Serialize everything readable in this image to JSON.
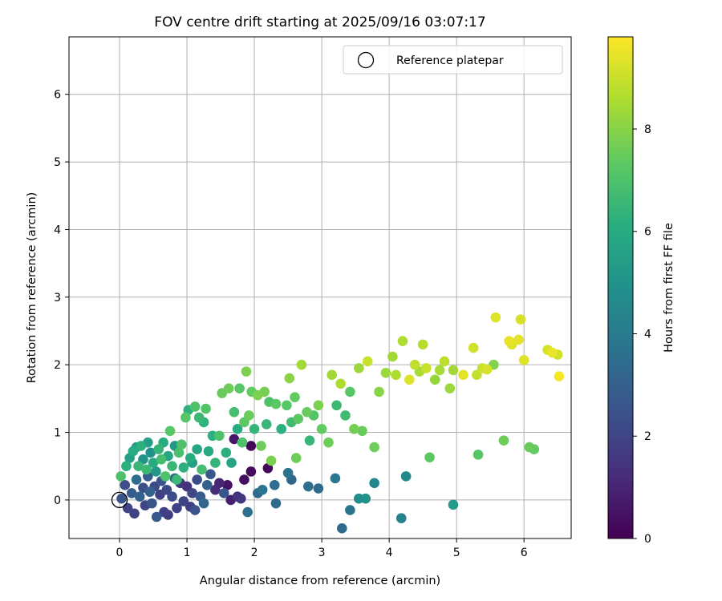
{
  "chart_data": {
    "type": "scatter",
    "title": "FOV centre drift starting at 2025/09/16 03:07:17",
    "xlabel": "Angular distance from reference (arcmin)",
    "ylabel": "Rotation from reference (arcmin)",
    "xlim": [
      -0.75,
      6.7
    ],
    "ylim": [
      -0.57,
      6.85
    ],
    "xticks": [
      0,
      1,
      2,
      3,
      4,
      5,
      6
    ],
    "yticks": [
      0,
      1,
      2,
      3,
      4,
      5,
      6
    ],
    "grid": true,
    "legend": {
      "position": "top-right",
      "entries": [
        "Reference platepar"
      ]
    },
    "reference_point": {
      "x": 0,
      "y": 0
    },
    "colorbar": {
      "label": "Hours from first FF file",
      "range": [
        0,
        9.8
      ],
      "ticks": [
        0,
        2,
        4,
        6,
        8
      ],
      "colormap": "viridis"
    },
    "points": [
      {
        "x": 0.03,
        "y": 0.02,
        "c": 2.6
      },
      {
        "x": 0.08,
        "y": 0.22,
        "c": 2.3
      },
      {
        "x": 0.12,
        "y": -0.12,
        "c": 2.0
      },
      {
        "x": 0.18,
        "y": 0.1,
        "c": 2.8
      },
      {
        "x": 0.22,
        "y": -0.2,
        "c": 1.9
      },
      {
        "x": 0.25,
        "y": 0.3,
        "c": 3.5
      },
      {
        "x": 0.3,
        "y": 0.05,
        "c": 3.0
      },
      {
        "x": 0.35,
        "y": 0.18,
        "c": 2.4
      },
      {
        "x": 0.38,
        "y": -0.08,
        "c": 2.0
      },
      {
        "x": 0.42,
        "y": 0.35,
        "c": 2.9
      },
      {
        "x": 0.45,
        "y": 0.12,
        "c": 3.1
      },
      {
        "x": 0.48,
        "y": -0.05,
        "c": 2.6
      },
      {
        "x": 0.52,
        "y": 0.2,
        "c": 2.2
      },
      {
        "x": 0.55,
        "y": -0.25,
        "c": 2.7
      },
      {
        "x": 0.6,
        "y": 0.08,
        "c": 1.8
      },
      {
        "x": 0.62,
        "y": 0.28,
        "c": 2.5
      },
      {
        "x": 0.66,
        "y": -0.18,
        "c": 1.9
      },
      {
        "x": 0.7,
        "y": 0.15,
        "c": 2.1
      },
      {
        "x": 0.72,
        "y": -0.22,
        "c": 1.7
      },
      {
        "x": 0.78,
        "y": 0.05,
        "c": 2.3
      },
      {
        "x": 0.82,
        "y": 0.32,
        "c": 3.4
      },
      {
        "x": 0.85,
        "y": -0.12,
        "c": 1.9
      },
      {
        "x": 0.9,
        "y": 0.25,
        "c": 1.6
      },
      {
        "x": 0.95,
        "y": -0.02,
        "c": 2.0
      },
      {
        "x": 1.0,
        "y": 0.2,
        "c": 1.4
      },
      {
        "x": 1.05,
        "y": -0.1,
        "c": 1.8
      },
      {
        "x": 1.08,
        "y": 0.1,
        "c": 2.0
      },
      {
        "x": 1.12,
        "y": -0.15,
        "c": 2.5
      },
      {
        "x": 1.15,
        "y": 0.3,
        "c": 2.2
      },
      {
        "x": 1.2,
        "y": 0.05,
        "c": 2.8
      },
      {
        "x": 1.25,
        "y": -0.05,
        "c": 3.2
      },
      {
        "x": 1.3,
        "y": 0.22,
        "c": 3.0
      },
      {
        "x": 1.35,
        "y": 0.38,
        "c": 2.6
      },
      {
        "x": 1.42,
        "y": 0.15,
        "c": 1.2
      },
      {
        "x": 1.48,
        "y": 0.25,
        "c": 1.0
      },
      {
        "x": 1.55,
        "y": 0.1,
        "c": 2.6
      },
      {
        "x": 1.6,
        "y": 0.22,
        "c": 0.5
      },
      {
        "x": 1.65,
        "y": 0.0,
        "c": 0.9
      },
      {
        "x": 1.7,
        "y": 0.9,
        "c": 0.6
      },
      {
        "x": 1.75,
        "y": 0.05,
        "c": 1.4
      },
      {
        "x": 1.8,
        "y": 0.02,
        "c": 1.6
      },
      {
        "x": 1.85,
        "y": 0.3,
        "c": 0.4
      },
      {
        "x": 1.9,
        "y": -0.18,
        "c": 3.6
      },
      {
        "x": 1.95,
        "y": 0.42,
        "c": 0.3
      },
      {
        "x": 1.95,
        "y": 0.8,
        "c": 0.2
      },
      {
        "x": 2.05,
        "y": 0.1,
        "c": 3.3
      },
      {
        "x": 2.12,
        "y": 0.15,
        "c": 3.8
      },
      {
        "x": 2.2,
        "y": 0.47,
        "c": 0.2
      },
      {
        "x": 2.3,
        "y": 0.22,
        "c": 3.5
      },
      {
        "x": 2.32,
        "y": -0.05,
        "c": 3.4
      },
      {
        "x": 2.5,
        "y": 0.4,
        "c": 3.7
      },
      {
        "x": 2.55,
        "y": 0.3,
        "c": 3.2
      },
      {
        "x": 2.8,
        "y": 0.2,
        "c": 3.6
      },
      {
        "x": 2.95,
        "y": 0.17,
        "c": 3.4
      },
      {
        "x": 3.2,
        "y": 0.32,
        "c": 3.9
      },
      {
        "x": 3.3,
        "y": -0.42,
        "c": 3.4
      },
      {
        "x": 3.42,
        "y": -0.15,
        "c": 3.7
      },
      {
        "x": 3.55,
        "y": 0.02,
        "c": 4.7
      },
      {
        "x": 3.65,
        "y": 0.02,
        "c": 5.0
      },
      {
        "x": 3.78,
        "y": 0.25,
        "c": 4.5
      },
      {
        "x": 4.18,
        "y": -0.27,
        "c": 4.3
      },
      {
        "x": 4.25,
        "y": 0.35,
        "c": 4.6
      },
      {
        "x": 4.95,
        "y": -0.07,
        "c": 5.3
      },
      {
        "x": 0.02,
        "y": 0.35,
        "c": 7.0
      },
      {
        "x": 0.1,
        "y": 0.5,
        "c": 6.2
      },
      {
        "x": 0.15,
        "y": 0.62,
        "c": 5.6
      },
      {
        "x": 0.2,
        "y": 0.72,
        "c": 6.0
      },
      {
        "x": 0.25,
        "y": 0.78,
        "c": 5.4
      },
      {
        "x": 0.28,
        "y": 0.5,
        "c": 6.5
      },
      {
        "x": 0.32,
        "y": 0.8,
        "c": 6.2
      },
      {
        "x": 0.35,
        "y": 0.6,
        "c": 5.0
      },
      {
        "x": 0.4,
        "y": 0.45,
        "c": 6.6
      },
      {
        "x": 0.42,
        "y": 0.85,
        "c": 5.5
      },
      {
        "x": 0.46,
        "y": 0.7,
        "c": 4.9
      },
      {
        "x": 0.5,
        "y": 0.55,
        "c": 6.0
      },
      {
        "x": 0.54,
        "y": 0.42,
        "c": 5.2
      },
      {
        "x": 0.58,
        "y": 0.75,
        "c": 6.4
      },
      {
        "x": 0.62,
        "y": 0.6,
        "c": 6.8
      },
      {
        "x": 0.65,
        "y": 0.85,
        "c": 6.1
      },
      {
        "x": 0.68,
        "y": 0.35,
        "c": 7.0
      },
      {
        "x": 0.72,
        "y": 0.65,
        "c": 5.8
      },
      {
        "x": 0.75,
        "y": 1.02,
        "c": 7.2
      },
      {
        "x": 0.78,
        "y": 0.5,
        "c": 6.5
      },
      {
        "x": 0.82,
        "y": 0.8,
        "c": 5.2
      },
      {
        "x": 0.85,
        "y": 0.3,
        "c": 6.6
      },
      {
        "x": 0.88,
        "y": 0.7,
        "c": 6.9
      },
      {
        "x": 0.92,
        "y": 0.82,
        "c": 7.0
      },
      {
        "x": 0.95,
        "y": 0.48,
        "c": 6.2
      },
      {
        "x": 0.98,
        "y": 1.22,
        "c": 7.2
      },
      {
        "x": 1.02,
        "y": 1.33,
        "c": 6.3
      },
      {
        "x": 1.05,
        "y": 0.62,
        "c": 6.0
      },
      {
        "x": 1.08,
        "y": 0.55,
        "c": 5.5
      },
      {
        "x": 1.12,
        "y": 1.38,
        "c": 7.0
      },
      {
        "x": 1.15,
        "y": 0.75,
        "c": 5.7
      },
      {
        "x": 1.18,
        "y": 1.22,
        "c": 6.6
      },
      {
        "x": 1.22,
        "y": 0.45,
        "c": 6.8
      },
      {
        "x": 1.25,
        "y": 1.15,
        "c": 6.3
      },
      {
        "x": 1.28,
        "y": 1.35,
        "c": 7.1
      },
      {
        "x": 1.32,
        "y": 0.72,
        "c": 5.9
      },
      {
        "x": 1.38,
        "y": 0.95,
        "c": 6.2
      },
      {
        "x": 1.42,
        "y": 0.55,
        "c": 6.4
      },
      {
        "x": 1.48,
        "y": 0.95,
        "c": 7.0
      },
      {
        "x": 1.52,
        "y": 1.58,
        "c": 7.5
      },
      {
        "x": 1.58,
        "y": 0.7,
        "c": 6.2
      },
      {
        "x": 1.62,
        "y": 1.65,
        "c": 7.6
      },
      {
        "x": 1.66,
        "y": 0.55,
        "c": 5.7
      },
      {
        "x": 1.7,
        "y": 1.3,
        "c": 6.8
      },
      {
        "x": 1.75,
        "y": 1.05,
        "c": 6.0
      },
      {
        "x": 1.78,
        "y": 1.65,
        "c": 7.2
      },
      {
        "x": 1.82,
        "y": 0.85,
        "c": 7.0
      },
      {
        "x": 1.85,
        "y": 1.15,
        "c": 7.3
      },
      {
        "x": 1.88,
        "y": 1.9,
        "c": 7.8
      },
      {
        "x": 1.92,
        "y": 1.25,
        "c": 7.5
      },
      {
        "x": 1.96,
        "y": 1.6,
        "c": 7.4
      },
      {
        "x": 2.0,
        "y": 1.05,
        "c": 6.4
      },
      {
        "x": 2.05,
        "y": 1.55,
        "c": 7.8
      },
      {
        "x": 2.1,
        "y": 0.8,
        "c": 7.6
      },
      {
        "x": 2.15,
        "y": 1.6,
        "c": 7.7
      },
      {
        "x": 2.18,
        "y": 1.12,
        "c": 6.5
      },
      {
        "x": 2.22,
        "y": 1.45,
        "c": 7.0
      },
      {
        "x": 2.25,
        "y": 0.58,
        "c": 7.8
      },
      {
        "x": 2.32,
        "y": 1.42,
        "c": 7.3
      },
      {
        "x": 2.4,
        "y": 1.05,
        "c": 6.2
      },
      {
        "x": 2.48,
        "y": 1.4,
        "c": 7.2
      },
      {
        "x": 2.52,
        "y": 1.8,
        "c": 8.0
      },
      {
        "x": 2.55,
        "y": 1.15,
        "c": 6.7
      },
      {
        "x": 2.6,
        "y": 1.52,
        "c": 7.4
      },
      {
        "x": 2.62,
        "y": 0.62,
        "c": 7.6
      },
      {
        "x": 2.65,
        "y": 1.2,
        "c": 7.3
      },
      {
        "x": 2.7,
        "y": 2.0,
        "c": 8.4
      },
      {
        "x": 2.78,
        "y": 1.3,
        "c": 7.5
      },
      {
        "x": 2.82,
        "y": 0.88,
        "c": 6.5
      },
      {
        "x": 2.88,
        "y": 1.25,
        "c": 7.1
      },
      {
        "x": 2.95,
        "y": 1.4,
        "c": 7.8
      },
      {
        "x": 3.0,
        "y": 1.05,
        "c": 7.4
      },
      {
        "x": 3.1,
        "y": 0.85,
        "c": 7.6
      },
      {
        "x": 3.15,
        "y": 1.85,
        "c": 8.4
      },
      {
        "x": 3.22,
        "y": 1.4,
        "c": 6.6
      },
      {
        "x": 3.28,
        "y": 1.72,
        "c": 8.6
      },
      {
        "x": 3.35,
        "y": 1.25,
        "c": 6.7
      },
      {
        "x": 3.42,
        "y": 1.6,
        "c": 7.2
      },
      {
        "x": 3.48,
        "y": 1.05,
        "c": 7.7
      },
      {
        "x": 3.55,
        "y": 1.95,
        "c": 8.3
      },
      {
        "x": 3.6,
        "y": 1.02,
        "c": 7.5
      },
      {
        "x": 3.68,
        "y": 2.05,
        "c": 9.0
      },
      {
        "x": 3.78,
        "y": 0.78,
        "c": 7.6
      },
      {
        "x": 3.85,
        "y": 1.6,
        "c": 8.0
      },
      {
        "x": 3.95,
        "y": 1.88,
        "c": 8.3
      },
      {
        "x": 4.05,
        "y": 2.12,
        "c": 8.4
      },
      {
        "x": 4.1,
        "y": 1.85,
        "c": 8.6
      },
      {
        "x": 4.2,
        "y": 2.35,
        "c": 8.6
      },
      {
        "x": 4.3,
        "y": 1.78,
        "c": 9.3
      },
      {
        "x": 4.38,
        "y": 2.0,
        "c": 8.9
      },
      {
        "x": 4.45,
        "y": 1.9,
        "c": 8.5
      },
      {
        "x": 4.5,
        "y": 2.3,
        "c": 8.7
      },
      {
        "x": 4.55,
        "y": 1.95,
        "c": 9.0
      },
      {
        "x": 4.6,
        "y": 0.63,
        "c": 7.3
      },
      {
        "x": 4.68,
        "y": 1.78,
        "c": 8.2
      },
      {
        "x": 4.75,
        "y": 1.92,
        "c": 8.5
      },
      {
        "x": 4.82,
        "y": 2.05,
        "c": 8.8
      },
      {
        "x": 4.9,
        "y": 1.65,
        "c": 8.3
      },
      {
        "x": 4.95,
        "y": 1.92,
        "c": 8.4
      },
      {
        "x": 5.1,
        "y": 1.85,
        "c": 9.4
      },
      {
        "x": 5.25,
        "y": 2.25,
        "c": 9.1
      },
      {
        "x": 5.3,
        "y": 1.85,
        "c": 8.9
      },
      {
        "x": 5.32,
        "y": 0.67,
        "c": 7.2
      },
      {
        "x": 5.38,
        "y": 1.95,
        "c": 9.0
      },
      {
        "x": 5.45,
        "y": 1.93,
        "c": 9.2
      },
      {
        "x": 5.55,
        "y": 2.0,
        "c": 7.9
      },
      {
        "x": 5.58,
        "y": 2.7,
        "c": 9.3
      },
      {
        "x": 5.7,
        "y": 0.88,
        "c": 7.6
      },
      {
        "x": 5.78,
        "y": 2.35,
        "c": 9.5
      },
      {
        "x": 5.82,
        "y": 2.3,
        "c": 9.3
      },
      {
        "x": 5.92,
        "y": 2.37,
        "c": 9.4
      },
      {
        "x": 5.95,
        "y": 2.67,
        "c": 9.2
      },
      {
        "x": 6.0,
        "y": 2.07,
        "c": 9.3
      },
      {
        "x": 6.08,
        "y": 0.78,
        "c": 7.5
      },
      {
        "x": 6.15,
        "y": 0.75,
        "c": 7.4
      },
      {
        "x": 6.35,
        "y": 2.22,
        "c": 9.2
      },
      {
        "x": 6.42,
        "y": 2.18,
        "c": 9.5
      },
      {
        "x": 6.5,
        "y": 2.15,
        "c": 9.1
      },
      {
        "x": 6.52,
        "y": 1.83,
        "c": 9.7
      }
    ]
  }
}
